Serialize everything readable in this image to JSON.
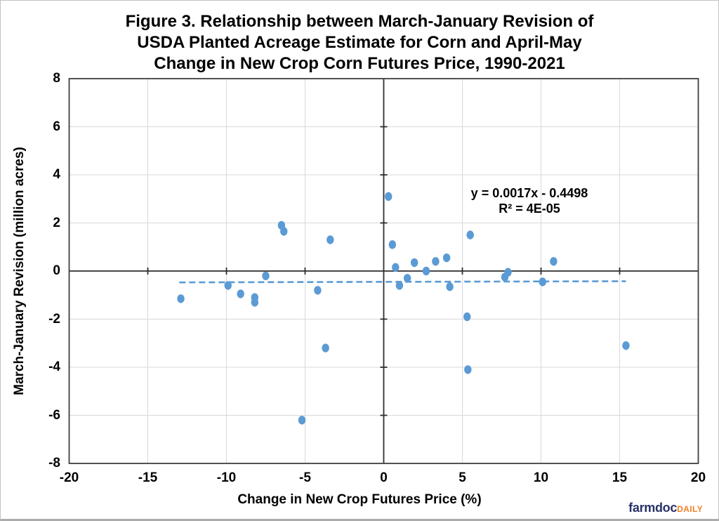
{
  "title_lines": [
    "Figure 3. Relationship between March-January Revision of",
    "USDA Planted Acreage Estimate for Corn and April-May",
    "Change in New Crop Corn Futures Price, 1990-2021"
  ],
  "logo": {
    "brand": "farmdoc",
    "suffix": "DAILY"
  },
  "chart_data": {
    "type": "scatter",
    "title": "Figure 3. Relationship between March-January Revision of USDA Planted Acreage Estimate for Corn and April-May Change in New Crop Corn Futures Price, 1990-2021",
    "xlabel": "Change in New Crop Futures Price (%)",
    "ylabel": "March-January Revision (million acres)",
    "xlim": [
      -20,
      20
    ],
    "ylim": [
      -8,
      8
    ],
    "x_ticks": [
      -20,
      -15,
      -10,
      -5,
      0,
      5,
      10,
      15,
      20
    ],
    "y_ticks": [
      8,
      6,
      4,
      2,
      0,
      -2,
      -4,
      -6,
      -8
    ],
    "grid": true,
    "legend": "none",
    "points": [
      [
        -12.9,
        -1.15
      ],
      [
        -9.9,
        -0.6
      ],
      [
        -9.1,
        -0.95
      ],
      [
        -8.2,
        -1.1
      ],
      [
        -8.2,
        -1.3
      ],
      [
        -7.5,
        -0.2
      ],
      [
        -6.5,
        1.9
      ],
      [
        -6.35,
        1.65
      ],
      [
        -5.2,
        -6.2
      ],
      [
        -4.2,
        -0.8
      ],
      [
        -3.7,
        -3.2
      ],
      [
        -3.4,
        1.3
      ],
      [
        0.3,
        3.1
      ],
      [
        0.55,
        1.1
      ],
      [
        0.75,
        0.15
      ],
      [
        1.0,
        -0.6
      ],
      [
        1.5,
        -0.3
      ],
      [
        1.95,
        0.35
      ],
      [
        2.7,
        0.0
      ],
      [
        3.3,
        0.4
      ],
      [
        4.0,
        0.55
      ],
      [
        4.2,
        -0.65
      ],
      [
        5.3,
        -1.9
      ],
      [
        5.35,
        -4.1
      ],
      [
        5.5,
        1.5
      ],
      [
        7.7,
        -0.25
      ],
      [
        7.9,
        -0.05
      ],
      [
        10.1,
        -0.45
      ],
      [
        10.8,
        0.4
      ],
      [
        15.4,
        -3.1
      ]
    ],
    "trendline": {
      "slope": 0.0017,
      "intercept": -0.4498,
      "x_start": -13.0,
      "x_end": 15.4,
      "style": "dashed"
    },
    "annotation": {
      "line1": "y = 0.0017x - 0.4498",
      "line2": "R² = 4E-05"
    },
    "colors": {
      "marker": "#5B9BD5",
      "trendline": "#5B9BD5",
      "gridline": "#D9D9D9",
      "axis": "#2E2E2E",
      "frame": "#3F3F3F"
    }
  }
}
